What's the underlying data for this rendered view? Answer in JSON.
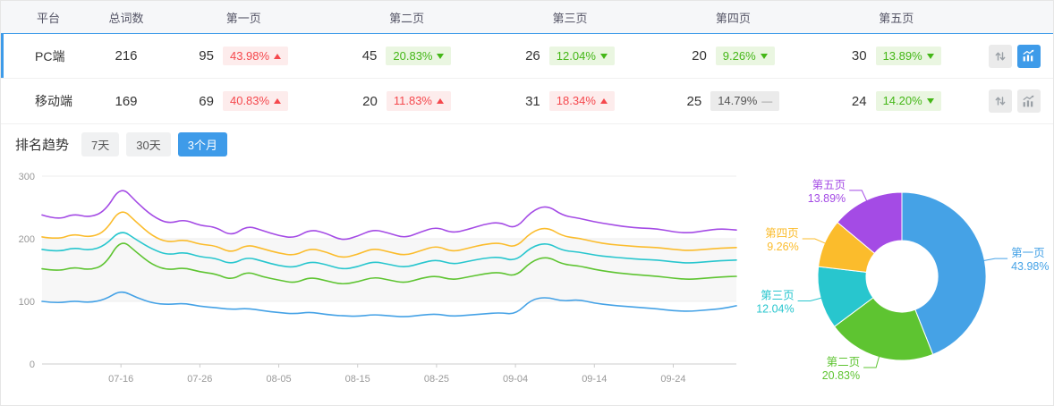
{
  "colors": {
    "blue": "#45a2e6",
    "green": "#5ec431",
    "cyan": "#28c6ce",
    "yellow": "#fbbc2c",
    "purple": "#a44be5",
    "accent": "#3e9be9",
    "up_red": "#f5484d",
    "down_green": "#44b717",
    "icon_gray": "#9aa0a6",
    "grid": "#ececec",
    "axis": "#cccccc",
    "tick_text": "#999999"
  },
  "symbols": {
    "up": "arrow-up-triangle",
    "down": "arrow-down-triangle",
    "flat": "—"
  },
  "table": {
    "headers": [
      "平台",
      "总词数",
      "第一页",
      "第二页",
      "第三页",
      "第四页",
      "第五页"
    ],
    "rows": [
      {
        "platform": "PC端",
        "total": "216",
        "selected": true,
        "pages": [
          {
            "count": "95",
            "pct": "43.98%",
            "trend": "up"
          },
          {
            "count": "45",
            "pct": "20.83%",
            "trend": "down"
          },
          {
            "count": "26",
            "pct": "12.04%",
            "trend": "down"
          },
          {
            "count": "20",
            "pct": "9.26%",
            "trend": "down"
          },
          {
            "count": "30",
            "pct": "13.89%",
            "trend": "down"
          }
        ]
      },
      {
        "platform": "移动端",
        "total": "169",
        "selected": false,
        "pages": [
          {
            "count": "69",
            "pct": "40.83%",
            "trend": "up"
          },
          {
            "count": "20",
            "pct": "11.83%",
            "trend": "up"
          },
          {
            "count": "31",
            "pct": "18.34%",
            "trend": "up"
          },
          {
            "count": "25",
            "pct": "14.79%",
            "trend": "flat"
          },
          {
            "count": "24",
            "pct": "14.20%",
            "trend": "down"
          }
        ]
      }
    ]
  },
  "trend": {
    "label": "排名趋势",
    "tabs": [
      {
        "label": "7天",
        "active": false
      },
      {
        "label": "30天",
        "active": false
      },
      {
        "label": "3个月",
        "active": true
      }
    ]
  },
  "chart_data": [
    {
      "type": "line",
      "title": "排名趋势",
      "ylim": [
        0,
        300
      ],
      "y_ticks": [
        0,
        100,
        200,
        300
      ],
      "x_tick_labels": [
        "07-16",
        "07-26",
        "08-05",
        "08-15",
        "08-25",
        "09-04",
        "09-14",
        "09-24"
      ],
      "x_tick_indices": [
        5,
        10,
        15,
        20,
        25,
        30,
        35,
        40
      ],
      "grid": true,
      "legend": "none",
      "series": [
        {
          "name": "第一页",
          "color_key": "blue",
          "values": [
            100,
            97,
            101,
            98,
            103,
            118,
            106,
            97,
            95,
            97,
            92,
            90,
            87,
            89,
            85,
            82,
            80,
            83,
            79,
            77,
            76,
            79,
            77,
            75,
            78,
            80,
            76,
            78,
            80,
            82,
            79,
            103,
            107,
            100,
            103,
            97,
            94,
            92,
            90,
            88,
            85,
            84,
            86,
            88,
            93
          ]
        },
        {
          "name": "第二页",
          "color_key": "green",
          "values": [
            152,
            148,
            155,
            150,
            158,
            200,
            178,
            158,
            150,
            154,
            147,
            144,
            134,
            148,
            139,
            134,
            129,
            139,
            133,
            127,
            131,
            139,
            134,
            129,
            137,
            141,
            134,
            139,
            144,
            147,
            139,
            164,
            172,
            159,
            157,
            151,
            147,
            144,
            142,
            140,
            137,
            135,
            137,
            139,
            140
          ]
        },
        {
          "name": "第三页",
          "color_key": "cyan",
          "values": [
            183,
            179,
            186,
            181,
            189,
            215,
            198,
            183,
            174,
            179,
            171,
            169,
            159,
            171,
            164,
            157,
            154,
            164,
            159,
            151,
            155,
            164,
            159,
            154,
            161,
            167,
            159,
            164,
            169,
            171,
            164,
            187,
            194,
            181,
            179,
            174,
            171,
            169,
            167,
            166,
            163,
            161,
            163,
            165,
            166
          ]
        },
        {
          "name": "第四页",
          "color_key": "yellow",
          "values": [
            203,
            199,
            208,
            202,
            211,
            250,
            226,
            204,
            194,
            199,
            191,
            189,
            177,
            191,
            184,
            177,
            173,
            185,
            179,
            169,
            175,
            185,
            179,
            173,
            181,
            189,
            179,
            185,
            191,
            194,
            185,
            211,
            219,
            204,
            201,
            195,
            191,
            189,
            187,
            186,
            183,
            181,
            183,
            185,
            186
          ]
        },
        {
          "name": "第五页",
          "color_key": "purple",
          "values": [
            238,
            230,
            240,
            234,
            244,
            285,
            258,
            236,
            224,
            231,
            221,
            219,
            204,
            221,
            213,
            205,
            201,
            215,
            209,
            197,
            204,
            215,
            209,
            201,
            211,
            219,
            209,
            215,
            223,
            227,
            215,
            244,
            254,
            237,
            233,
            227,
            223,
            219,
            217,
            216,
            211,
            209,
            213,
            216,
            214
          ]
        }
      ]
    },
    {
      "type": "pie",
      "donut": true,
      "labels": [
        "第一页",
        "第二页",
        "第三页",
        "第四页",
        "第五页"
      ],
      "values": [
        43.98,
        20.83,
        12.04,
        9.26,
        13.89
      ],
      "display_pcts": [
        "43.98%",
        "20.83%",
        "12.04%",
        "9.26%",
        "13.89%"
      ],
      "color_keys": [
        "blue",
        "green",
        "cyan",
        "yellow",
        "purple"
      ]
    }
  ]
}
